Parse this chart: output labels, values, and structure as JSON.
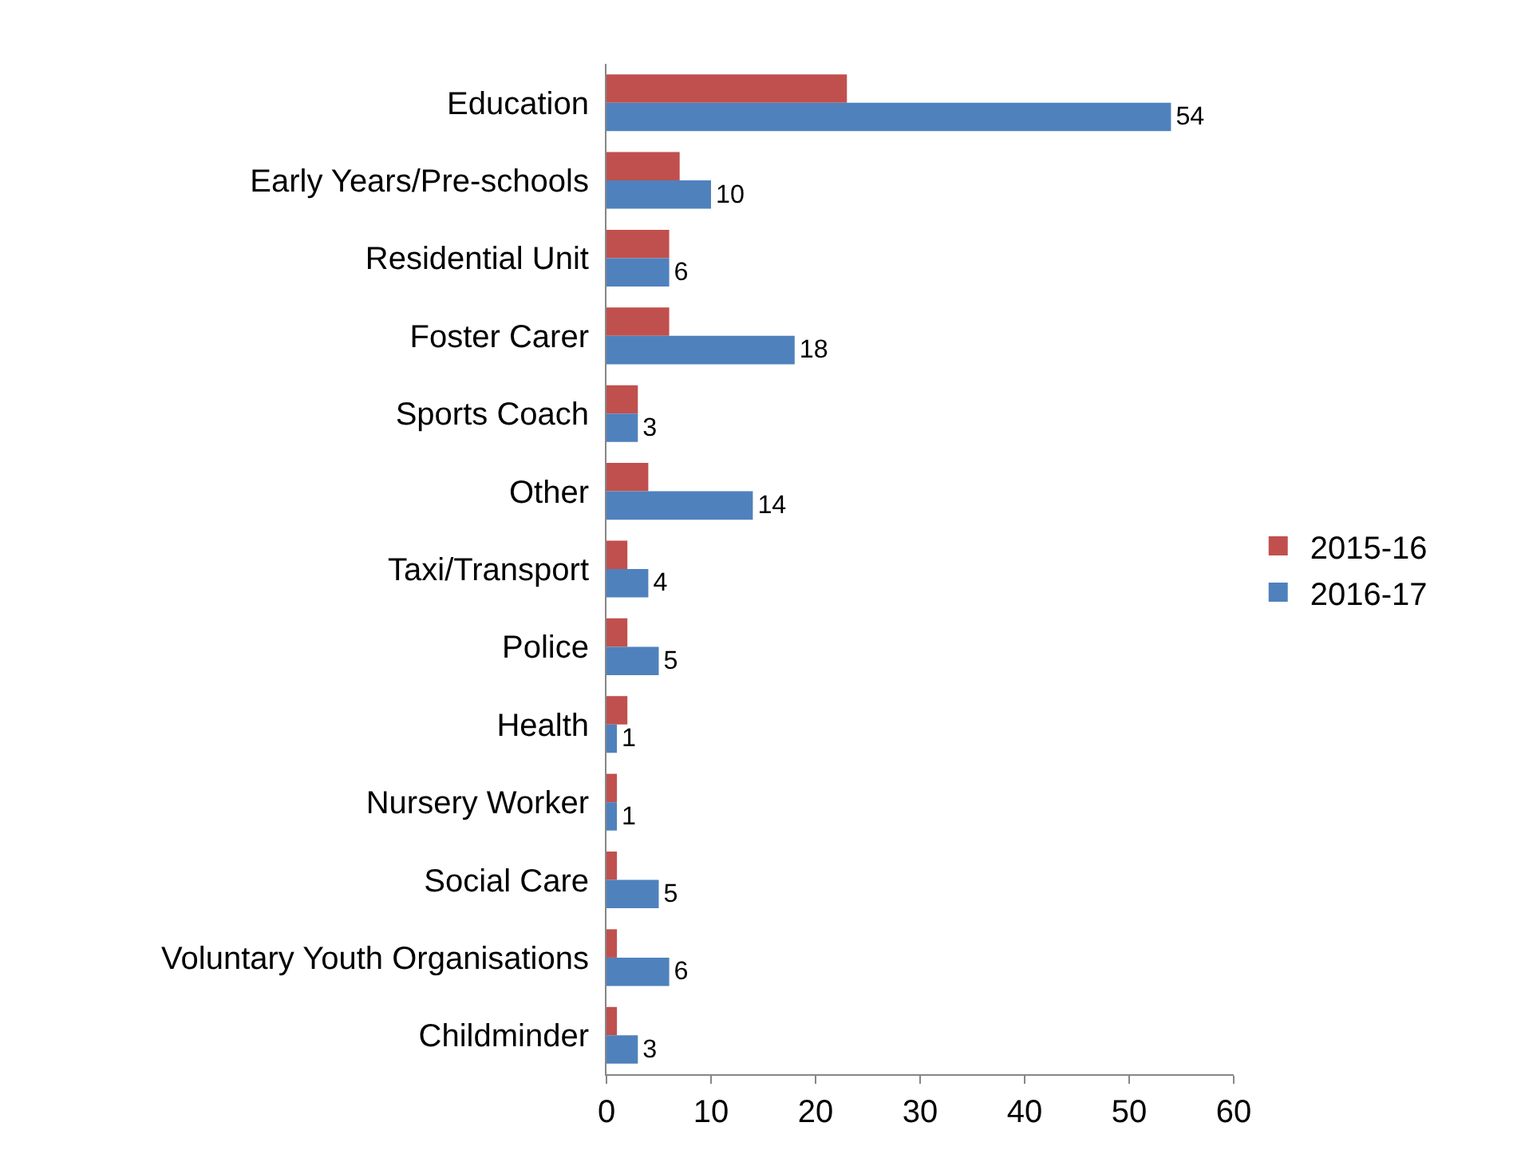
{
  "chart_data": {
    "type": "bar",
    "orientation": "horizontal",
    "categories": [
      "Education",
      "Early Years/Pre-schools",
      "Residential Unit",
      "Foster Carer",
      "Sports Coach",
      "Other",
      "Taxi/Transport",
      "Police",
      "Health",
      "Nursery Worker",
      "Social Care",
      "Voluntary Youth Organisations",
      "Childminder"
    ],
    "series": [
      {
        "name": "2015-16",
        "color": "#c0504d",
        "values": [
          23,
          7,
          6,
          6,
          3,
          4,
          2,
          2,
          2,
          1,
          1,
          1,
          1
        ]
      },
      {
        "name": "2016-17",
        "color": "#4f81bd",
        "values": [
          54,
          10,
          6,
          18,
          3,
          14,
          4,
          5,
          1,
          1,
          5,
          6,
          3
        ],
        "value_labels": [
          "54",
          "10",
          "6",
          "18",
          "3",
          "14",
          "4",
          "5",
          "1",
          "1",
          "5",
          "6",
          "3"
        ]
      }
    ],
    "xlim": [
      0,
      60
    ],
    "xticks": [
      0,
      10,
      20,
      30,
      40,
      50,
      60
    ],
    "grid": false,
    "legend": "right"
  }
}
